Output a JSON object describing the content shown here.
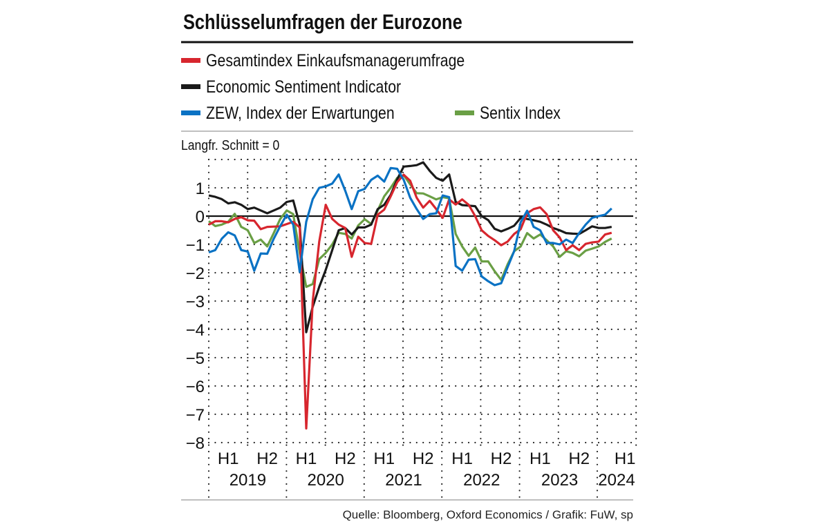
{
  "chart_data": {
    "type": "line",
    "title": "Schlüsselumfragen der Eurozone",
    "subtitle": "Langfr. Schnitt = 0",
    "source": "Quelle: Bloomberg, Oxford Economics / Grafik: FuW, sp",
    "x_start": "2019-01",
    "x_frequency": "monthly",
    "ylim": [
      -8,
      2
    ],
    "yticks": [
      "1",
      "0",
      "−1",
      "−2",
      "−3",
      "−4",
      "−5",
      "−6",
      "−7",
      "−8"
    ],
    "ytick_values": [
      1,
      0,
      -1,
      -2,
      -3,
      -4,
      -5,
      -6,
      -7,
      -8
    ],
    "half_labels": [
      "H1",
      "H2",
      "H1",
      "H2",
      "H1",
      "H2",
      "H1",
      "H2",
      "H1",
      "H2",
      "H1"
    ],
    "year_labels": [
      "2019",
      "2020",
      "2021",
      "2022",
      "2023",
      "2024"
    ],
    "grid": true,
    "legend_placement": "top",
    "series": [
      {
        "name": "Gesamtindex Einkaufsmanagerumfrage",
        "color": "#d7262e",
        "values": [
          -0.3,
          -0.18,
          -0.18,
          -0.22,
          -0.1,
          -0.04,
          -0.15,
          -0.16,
          -0.46,
          -0.38,
          -0.37,
          -0.36,
          -0.28,
          -0.2,
          -0.4,
          -7.5,
          -3,
          -0.9,
          0.4,
          -0.1,
          -0.3,
          -0.42,
          -1.44,
          -0.73,
          -0.95,
          -0.98,
          0.05,
          0.23,
          0.7,
          1.2,
          1.46,
          1.25,
          0.65,
          0.3,
          0.54,
          0.25,
          -0.06,
          0.59,
          0.41,
          0.59,
          0.4,
          0,
          -0.5,
          -0.7,
          -0.85,
          -1.03,
          -0.9,
          -0.63,
          -0.46,
          0.1,
          0.25,
          0.31,
          0.07,
          -0.5,
          -0.75,
          -1.2,
          -1.03,
          -1.2,
          -0.98,
          -0.93,
          -0.9,
          -0.65,
          -0.59
        ]
      },
      {
        "name": "Economic Sentiment Indicator",
        "color": "#1a1a1a",
        "values": [
          0.73,
          0.68,
          0.6,
          0.45,
          0.49,
          0.4,
          0.25,
          0.3,
          0.2,
          0.1,
          0.2,
          0.3,
          0.5,
          0.55,
          -0.3,
          -4.1,
          -3.2,
          -2.5,
          -1.9,
          -1.2,
          -0.5,
          -0.42,
          -0.65,
          -0.4,
          -0.4,
          -0.3,
          0.25,
          0.4,
          0.75,
          1.3,
          1.75,
          1.77,
          1.8,
          1.9,
          1.6,
          1.35,
          1.25,
          1.47,
          0.5,
          0.39,
          0.37,
          0.35,
          0,
          -0.14,
          -0.45,
          -0.54,
          -0.45,
          -0.34,
          -0.06,
          -0.1,
          -0.15,
          -0.2,
          -0.3,
          -0.42,
          -0.5,
          -0.6,
          -0.62,
          -0.63,
          -0.5,
          -0.36,
          -0.42,
          -0.42,
          -0.38
        ]
      },
      {
        "name": "ZEW, Index der Erwartungen",
        "color": "#0a72c4",
        "values": [
          -1.28,
          -1.2,
          -0.8,
          -0.57,
          -0.68,
          -1.2,
          -1.25,
          -1.93,
          -1.32,
          -1.33,
          -0.8,
          -0.35,
          0.05,
          -0.3,
          -1.97,
          -0.2,
          0.6,
          1.0,
          1.05,
          1.15,
          1.47,
          0.9,
          0.25,
          0.88,
          0.96,
          1.28,
          1.43,
          1.22,
          1.7,
          1.67,
          1.28,
          0.65,
          0.25,
          -0.1,
          0.07,
          0.1,
          0.73,
          0.67,
          -1.76,
          -1.93,
          -1.54,
          -1.52,
          -2.13,
          -2.3,
          -2.44,
          -2.37,
          -1.8,
          -1.24,
          -0.22,
          0.19,
          -0.38,
          -0.5,
          -0.95,
          -0.95,
          -1.0,
          -0.83,
          -0.95,
          -0.6,
          -0.3,
          -0.06,
          0,
          0.05,
          0.27
        ]
      },
      {
        "name": "Sentix Index",
        "color": "#6a9f45",
        "values": [
          -0.18,
          -0.35,
          -0.3,
          -0.2,
          0.08,
          -0.38,
          -0.5,
          -0.95,
          -0.83,
          -1.07,
          -0.6,
          -0.1,
          0.2,
          0.07,
          -1.3,
          -2.5,
          -2.4,
          -1.52,
          -1.3,
          -1.0,
          -0.59,
          -0.63,
          -0.79,
          -0.33,
          -0.11,
          -0.28,
          0.2,
          0.7,
          1.0,
          1.35,
          1.45,
          1.12,
          0.81,
          0.8,
          0.7,
          0.59,
          0.67,
          0.63,
          -0.63,
          -1.07,
          -1.4,
          -1.11,
          -1.6,
          -1.6,
          -1.95,
          -2.25,
          -1.7,
          -1.24,
          -1.07,
          -0.6,
          -0.79,
          -0.65,
          -0.85,
          -1.07,
          -1.44,
          -1.24,
          -1.3,
          -1.42,
          -1.22,
          -1.15,
          -1.07,
          -0.91,
          -0.79
        ]
      }
    ]
  }
}
